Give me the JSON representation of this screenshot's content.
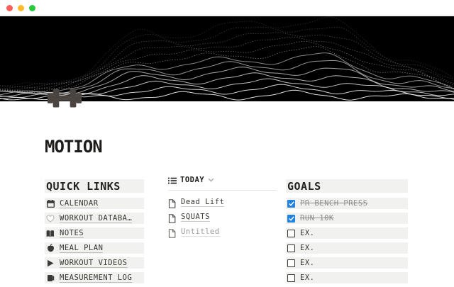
{
  "window": {
    "controls": [
      {
        "name": "close",
        "color": "#fe5f57"
      },
      {
        "name": "minimize",
        "color": "#febb2e"
      },
      {
        "name": "zoom",
        "color": "#27c93f"
      }
    ]
  },
  "cover": {
    "style": "black ridgeline waveform art",
    "bg": "#000000",
    "line_color": "#ffffff"
  },
  "page": {
    "title": "MOTION",
    "icon": "pixel-dumbbell"
  },
  "quick_links": {
    "header": "QUICK LINKS",
    "items": [
      {
        "icon": "calendar-icon",
        "label": "CALENDAR"
      },
      {
        "icon": "heart-icon",
        "label": "WORKOUT DATABA…"
      },
      {
        "icon": "book-icon",
        "label": "NOTES"
      },
      {
        "icon": "apple-icon",
        "label": "MEAL PLAN"
      },
      {
        "icon": "play-icon",
        "label": "WORKOUT VIDEOS"
      },
      {
        "icon": "ruler-icon",
        "label": "MEASUREMENT LOG"
      }
    ]
  },
  "today": {
    "header": "TODAY",
    "items": [
      {
        "label": "Dead Lift",
        "untitled": false
      },
      {
        "label": "SQUATS",
        "untitled": false
      },
      {
        "label": "Untitled",
        "untitled": true
      }
    ]
  },
  "goals": {
    "header": "GOALS",
    "items": [
      {
        "label": "PR BENCH PRESS",
        "checked": true
      },
      {
        "label": "RUN 10K",
        "checked": true
      },
      {
        "label": "EX.",
        "checked": false
      },
      {
        "label": "EX.",
        "checked": false
      },
      {
        "label": "EX.",
        "checked": false
      },
      {
        "label": "EX.",
        "checked": false
      }
    ]
  },
  "colors": {
    "accent_blue": "#2383e2",
    "row_bg": "#f1f1ef",
    "text": "#37352f",
    "muted": "#8f8d89"
  }
}
